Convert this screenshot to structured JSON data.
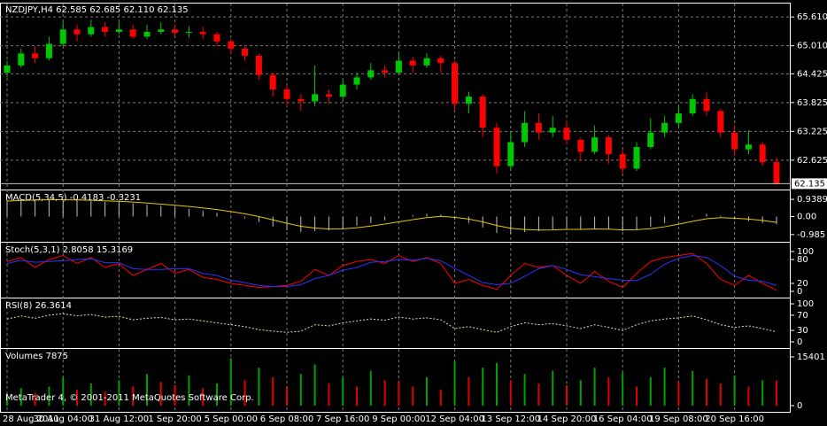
{
  "footer": "MetaTrader 4, © 2001-2011 MetaQuotes Software Corp.",
  "chart_data": [
    {
      "type": "candlestick",
      "title": "NZDJPY,H4  62.585 62.685 62.110 62.135",
      "categories": [
        "28 Aug 2011",
        null,
        null,
        null,
        "30 Aug 04:00",
        null,
        null,
        null,
        "31 Aug 12:00",
        null,
        null,
        null,
        "1 Sep 20:00",
        null,
        null,
        null,
        "5 Sep 00:00",
        null,
        null,
        null,
        "6 Sep 08:00",
        null,
        null,
        null,
        "7 Sep 16:00",
        null,
        null,
        null,
        "9 Sep 00:00",
        null,
        null,
        null,
        "12 Sep 04:00",
        null,
        null,
        null,
        "13 Sep 12:00",
        null,
        null,
        null,
        "14 Sep 20:00",
        null,
        null,
        null,
        "16 Sep 04:00",
        null,
        null,
        null,
        "19 Sep 08:00",
        null,
        null,
        null,
        "20 Sep 16:00",
        null,
        null,
        null
      ],
      "open": [
        64.45,
        64.6,
        64.85,
        64.75,
        65.05,
        65.35,
        65.25,
        65.4,
        65.3,
        65.35,
        65.2,
        65.3,
        65.35,
        65.28,
        65.3,
        65.25,
        65.1,
        64.95,
        64.8,
        64.4,
        64.1,
        63.9,
        63.85,
        64.0,
        63.95,
        64.2,
        64.35,
        64.5,
        64.45,
        64.7,
        64.6,
        64.75,
        64.65,
        63.8,
        63.95,
        63.3,
        62.5,
        63.0,
        63.4,
        63.2,
        63.3,
        63.05,
        62.8,
        63.1,
        62.75,
        62.45,
        62.9,
        63.2,
        63.4,
        63.6,
        63.9,
        63.65,
        63.2,
        62.85,
        62.95,
        62.585
      ],
      "high": [
        64.7,
        64.95,
        65.0,
        65.2,
        65.5,
        65.45,
        65.55,
        65.5,
        65.5,
        65.45,
        65.45,
        65.5,
        65.45,
        65.42,
        65.4,
        65.3,
        65.15,
        65.0,
        64.85,
        64.45,
        64.2,
        64.0,
        64.6,
        64.1,
        64.3,
        64.45,
        64.65,
        64.6,
        64.85,
        64.78,
        64.85,
        64.8,
        64.7,
        64.05,
        64.0,
        63.4,
        63.2,
        63.65,
        63.6,
        63.55,
        63.45,
        63.1,
        63.35,
        63.15,
        62.85,
        63.0,
        63.5,
        63.55,
        63.75,
        64.0,
        64.05,
        63.7,
        63.35,
        63.25,
        63.0,
        62.685
      ],
      "low": [
        64.35,
        64.55,
        64.65,
        64.7,
        65.0,
        65.1,
        65.2,
        65.2,
        65.25,
        65.15,
        65.15,
        65.25,
        65.2,
        65.18,
        65.15,
        65.0,
        64.85,
        64.7,
        64.3,
        63.95,
        63.75,
        63.65,
        63.75,
        63.8,
        63.9,
        64.1,
        64.3,
        64.35,
        64.4,
        64.45,
        64.55,
        64.45,
        63.65,
        63.6,
        63.1,
        62.35,
        62.4,
        62.9,
        63.05,
        63.1,
        62.95,
        62.6,
        62.75,
        62.55,
        62.35,
        62.4,
        62.85,
        63.1,
        63.3,
        63.55,
        63.55,
        63.1,
        62.7,
        62.75,
        62.5,
        62.11
      ],
      "close": [
        64.6,
        64.85,
        64.75,
        65.05,
        65.35,
        65.25,
        65.4,
        65.3,
        65.35,
        65.2,
        65.3,
        65.35,
        65.28,
        65.3,
        65.25,
        65.1,
        64.95,
        64.8,
        64.4,
        64.1,
        63.9,
        63.85,
        64.0,
        63.95,
        64.2,
        64.35,
        64.5,
        64.45,
        64.7,
        64.6,
        64.75,
        64.65,
        63.8,
        63.95,
        63.3,
        62.5,
        63.0,
        63.4,
        63.2,
        63.3,
        63.05,
        62.8,
        63.1,
        62.75,
        62.45,
        62.9,
        63.2,
        63.4,
        63.6,
        63.9,
        63.65,
        63.2,
        62.85,
        62.95,
        62.585,
        62.135
      ],
      "up_color": "#00c800",
      "down_color": "#ff0000",
      "last_price": 62.135,
      "ylim": [
        62.05,
        65.89
      ],
      "yticks": [
        {
          "value": 65.61,
          "label": "65.610"
        },
        {
          "value": 65.01,
          "label": "65.010"
        },
        {
          "value": 64.425,
          "label": "64.425"
        },
        {
          "value": 63.825,
          "label": "63.825"
        },
        {
          "value": 63.225,
          "label": "63.225"
        },
        62.625
      ],
      "grid": true
    },
    {
      "type": "macd",
      "title": "MACD(5,34,5) -0.4183 -0.3231",
      "series": [
        {
          "name": "MACD",
          "color": "#c0c0c0",
          "values": [
            0.95,
            0.98,
            0.95,
            0.95,
            0.92,
            0.9,
            0.85,
            0.8,
            0.78,
            0.72,
            0.65,
            0.58,
            0.5,
            0.42,
            0.32,
            0.2,
            0.05,
            -0.1,
            -0.3,
            -0.55,
            -0.75,
            -0.85,
            -0.8,
            -0.75,
            -0.65,
            -0.5,
            -0.35,
            -0.2,
            -0.05,
            0.08,
            0.15,
            0.1,
            -0.15,
            -0.35,
            -0.6,
            -0.9,
            -0.95,
            -0.85,
            -0.8,
            -0.7,
            -0.65,
            -0.7,
            -0.65,
            -0.7,
            -0.8,
            -0.7,
            -0.55,
            -0.35,
            -0.15,
            0.05,
            0.15,
            0.05,
            -0.15,
            -0.25,
            -0.35,
            -0.4183
          ]
        },
        {
          "name": "Signal",
          "color": "#e6c800",
          "values": [
            0.85,
            0.88,
            0.9,
            0.92,
            0.92,
            0.91,
            0.89,
            0.86,
            0.83,
            0.79,
            0.74,
            0.68,
            0.62,
            0.55,
            0.47,
            0.38,
            0.27,
            0.15,
            0.0,
            -0.18,
            -0.37,
            -0.53,
            -0.63,
            -0.68,
            -0.67,
            -0.61,
            -0.52,
            -0.41,
            -0.29,
            -0.17,
            -0.06,
            0.01,
            -0.04,
            -0.14,
            -0.29,
            -0.49,
            -0.64,
            -0.71,
            -0.74,
            -0.73,
            -0.7,
            -0.7,
            -0.68,
            -0.69,
            -0.73,
            -0.72,
            -0.66,
            -0.56,
            -0.42,
            -0.26,
            -0.12,
            -0.06,
            -0.09,
            -0.14,
            -0.21,
            -0.3231
          ]
        }
      ],
      "ylim": [
        -1.38,
        1.38
      ],
      "yticks": [
        0.9389,
        {
          "value": 0,
          "label": "0.00"
        },
        -0.985
      ]
    },
    {
      "type": "stochastic",
      "title": "Stoch(5,3,1) 2.8058 15.3169",
      "series": [
        {
          "name": "Main",
          "color": "#ff0000",
          "values": [
            75,
            85,
            60,
            80,
            90,
            70,
            85,
            60,
            70,
            40,
            55,
            70,
            45,
            55,
            35,
            30,
            20,
            15,
            10,
            12,
            15,
            25,
            55,
            40,
            65,
            75,
            80,
            70,
            90,
            75,
            85,
            70,
            20,
            30,
            15,
            5,
            40,
            70,
            60,
            65,
            40,
            20,
            50,
            25,
            10,
            45,
            75,
            85,
            90,
            95,
            70,
            30,
            15,
            40,
            20,
            2.8058
          ]
        },
        {
          "name": "Signal",
          "color": "#3030ff",
          "values": [
            70,
            78,
            73,
            75,
            77,
            80,
            82,
            72,
            72,
            57,
            55,
            55,
            57,
            57,
            45,
            40,
            28,
            22,
            15,
            12,
            12,
            17,
            32,
            40,
            53,
            60,
            73,
            75,
            80,
            78,
            83,
            77,
            58,
            40,
            22,
            17,
            20,
            38,
            57,
            65,
            55,
            42,
            37,
            32,
            28,
            27,
            43,
            68,
            83,
            90,
            85,
            65,
            38,
            28,
            25,
            15.3169
          ]
        }
      ],
      "ylim": [
        -15.6,
        120
      ],
      "yticks": [
        100,
        80,
        20,
        0
      ]
    },
    {
      "type": "rsi",
      "title": "RSI(8) 26.3614",
      "series": [
        {
          "name": "RSI",
          "color": "#e6e6a0",
          "values": [
            60,
            68,
            62,
            70,
            74,
            68,
            72,
            65,
            67,
            58,
            62,
            64,
            58,
            60,
            55,
            50,
            45,
            40,
            32,
            28,
            25,
            28,
            45,
            42,
            50,
            55,
            60,
            57,
            65,
            60,
            63,
            58,
            35,
            40,
            32,
            25,
            40,
            50,
            45,
            48,
            42,
            35,
            45,
            38,
            30,
            45,
            55,
            60,
            63,
            68,
            58,
            45,
            38,
            42,
            35,
            26.3614
          ]
        }
      ],
      "ylim": [
        -16.3,
        111.6
      ],
      "yticks": [
        100,
        70,
        30,
        0
      ]
    },
    {
      "type": "volume",
      "title": "Volumes 7875",
      "values": [
        3000,
        5500,
        4000,
        6000,
        9000,
        5000,
        7000,
        4500,
        8000,
        6000,
        10000,
        7500,
        6500,
        9500,
        5500,
        7000,
        15000,
        8000,
        12000,
        9000,
        6000,
        10000,
        13000,
        7000,
        9000,
        6000,
        11000,
        8000,
        7500,
        6000,
        9000,
        5000,
        14000,
        9000,
        12000,
        13500,
        8000,
        10000,
        7000,
        11000,
        6500,
        8000,
        12000,
        9000,
        10500,
        6000,
        9000,
        12000,
        7500,
        11000,
        8500,
        7000,
        9500,
        6000,
        8000,
        7875
      ],
      "up_color": "#00a000",
      "down_color": "#e00000",
      "ylim": [
        -1960,
        17641
      ],
      "yticks": [
        15401,
        0
      ]
    }
  ]
}
